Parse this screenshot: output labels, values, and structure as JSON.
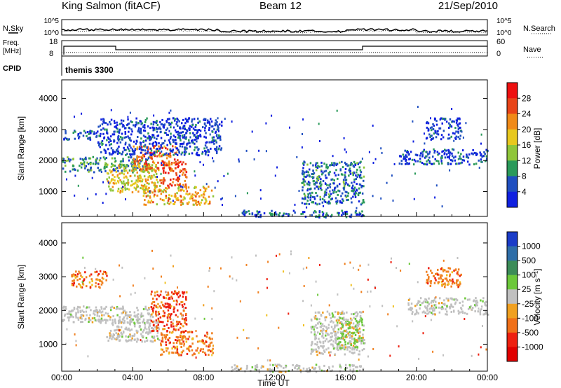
{
  "header": {
    "station": "King Salmon (fitACF)",
    "beam": "Beam 12",
    "date": "21/Sep/2010"
  },
  "strip_labels": {
    "nsky": "N.Sky",
    "nsearch": "N.Search",
    "freq_line1": "Freq.",
    "freq_line2": "[MHz]",
    "nave": "Nave",
    "cpid": "CPID",
    "cpid_value": "themis 3300"
  },
  "strip_ticks": {
    "noise_top_left": "10^5",
    "noise_bottom_left": "10^0",
    "noise_top_right": "10^5",
    "noise_bottom_right": "10^0",
    "freq_top": "18",
    "freq_bottom": "8",
    "nave_top": "60",
    "nave_bottom": "0"
  },
  "colors": {
    "frame": "#000000",
    "ground_scatter": "#c0c0c0"
  },
  "chart_data": [
    {
      "type": "heatmap",
      "name": "power",
      "xlabel": "Time UT",
      "ylabel": "Slant Range [km]",
      "xlim_hours": [
        0,
        24
      ],
      "ylim": [
        200,
        4600
      ],
      "yticks": [
        "1000",
        "2000",
        "3000",
        "4000"
      ],
      "colorbar_label": "Power [dB]",
      "colorbar_ticks": [
        "4",
        "8",
        "12",
        "16",
        "20",
        "24",
        "28"
      ],
      "colorbar_colors": [
        "#1020e0",
        "#1f4fc0",
        "#2a9a5a",
        "#8fc63a",
        "#e8c81e",
        "#f08a18",
        "#e84418",
        "#ee1010"
      ],
      "regions": [
        {
          "t": [
            0.0,
            5.0
          ],
          "r": [
            1650,
            2150
          ],
          "level": 0.3
        },
        {
          "t": [
            2.5,
            5.5
          ],
          "r": [
            1000,
            1900
          ],
          "level": 0.55
        },
        {
          "t": [
            4.0,
            6.5
          ],
          "r": [
            1700,
            2500
          ],
          "level": 0.75
        },
        {
          "t": [
            5.5,
            7.0
          ],
          "r": [
            1200,
            2000
          ],
          "level": 0.85
        },
        {
          "t": [
            4.5,
            8.5
          ],
          "r": [
            600,
            1200
          ],
          "level": 0.62
        },
        {
          "t": [
            0.0,
            2.0
          ],
          "r": [
            2700,
            3000
          ],
          "level": 0.18
        },
        {
          "t": [
            2.0,
            9.0
          ],
          "r": [
            2200,
            3400
          ],
          "level": 0.12
        },
        {
          "t": [
            13.5,
            17.0
          ],
          "r": [
            600,
            2000
          ],
          "level": 0.22
        },
        {
          "t": [
            10.0,
            17.0
          ],
          "r": [
            200,
            420
          ],
          "level": 0.2
        },
        {
          "t": [
            19.0,
            24.0
          ],
          "r": [
            1900,
            2400
          ],
          "level": 0.15
        },
        {
          "t": [
            20.5,
            22.5
          ],
          "r": [
            2700,
            3400
          ],
          "level": 0.1
        }
      ]
    },
    {
      "type": "heatmap",
      "name": "velocity",
      "xlabel": "Time UT",
      "ylabel": "Slant Range [km]",
      "xlim_hours": [
        0,
        24
      ],
      "ylim": [
        200,
        4600
      ],
      "xticks": [
        "00:00",
        "04:00",
        "08:00",
        "12:00",
        "16:00",
        "20:00",
        "00:00"
      ],
      "yticks": [
        "1000",
        "2000",
        "3000",
        "4000"
      ],
      "colorbar_label": "Velocity [m s⁻¹]",
      "colorbar_ticks": [
        "1000",
        "500",
        "100",
        "25",
        "-25",
        "-100",
        "-500",
        "-1000"
      ],
      "colorbar_colors": [
        "#1a3cc8",
        "#2e6ea8",
        "#3c8c58",
        "#6cc83a",
        "#c0c0c0",
        "#f0a020",
        "#f07018",
        "#ee2010",
        "#e00000"
      ],
      "regions": [
        {
          "t": [
            0.0,
            5.0
          ],
          "r": [
            1650,
            2150
          ],
          "category": "ground"
        },
        {
          "t": [
            2.5,
            5.5
          ],
          "r": [
            1100,
            1900
          ],
          "category": "ground"
        },
        {
          "t": [
            5.0,
            7.0
          ],
          "r": [
            1400,
            2600
          ],
          "category": "red"
        },
        {
          "t": [
            5.5,
            8.5
          ],
          "r": [
            700,
            1400
          ],
          "category": "orange"
        },
        {
          "t": [
            0.5,
            2.5
          ],
          "r": [
            2700,
            3200
          ],
          "category": "orange"
        },
        {
          "t": [
            14.0,
            17.0
          ],
          "r": [
            700,
            2000
          ],
          "category": "ground"
        },
        {
          "t": [
            15.5,
            17.0
          ],
          "r": [
            900,
            1800
          ],
          "category": "green"
        },
        {
          "t": [
            9.5,
            17.0
          ],
          "r": [
            200,
            420
          ],
          "category": "ground"
        },
        {
          "t": [
            19.5,
            24.0
          ],
          "r": [
            1900,
            2400
          ],
          "category": "ground"
        },
        {
          "t": [
            20.5,
            22.5
          ],
          "r": [
            2700,
            3300
          ],
          "category": "orange"
        }
      ]
    }
  ]
}
